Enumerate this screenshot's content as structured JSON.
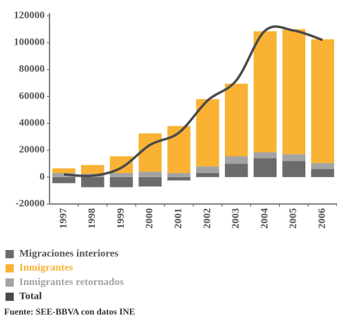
{
  "chart_data": {
    "type": "bar",
    "categories": [
      "1997",
      "1998",
      "1999",
      "2000",
      "2001",
      "2002",
      "2003",
      "2004",
      "2005",
      "2006"
    ],
    "series": [
      {
        "name": "Migraciones interiores",
        "color": "#6b6b6b",
        "values": [
          -4500,
          -7500,
          -7500,
          -7000,
          -2500,
          3000,
          10000,
          14000,
          12000,
          6000
        ]
      },
      {
        "name": "Inmigrantes",
        "color": "#f9b233",
        "values": [
          3500,
          6500,
          12500,
          28500,
          35000,
          50000,
          54000,
          90000,
          93000,
          92000
        ]
      },
      {
        "name": "Inmigrantes retornados",
        "color": "#a3a3a3",
        "values": [
          3000,
          2500,
          3000,
          4000,
          3000,
          5000,
          5500,
          4500,
          5000,
          4500
        ]
      },
      {
        "name": "Total",
        "color": "#4a4a4a",
        "type": "line",
        "values": [
          2000,
          1000,
          7000,
          24000,
          33000,
          57000,
          72000,
          109000,
          109000,
          102000
        ]
      }
    ],
    "ylim": [
      -20000,
      120000
    ],
    "yticks": [
      -20000,
      0,
      20000,
      40000,
      60000,
      80000,
      100000,
      120000
    ],
    "source": "Fuente: SEE-BBVA con datos INE"
  }
}
